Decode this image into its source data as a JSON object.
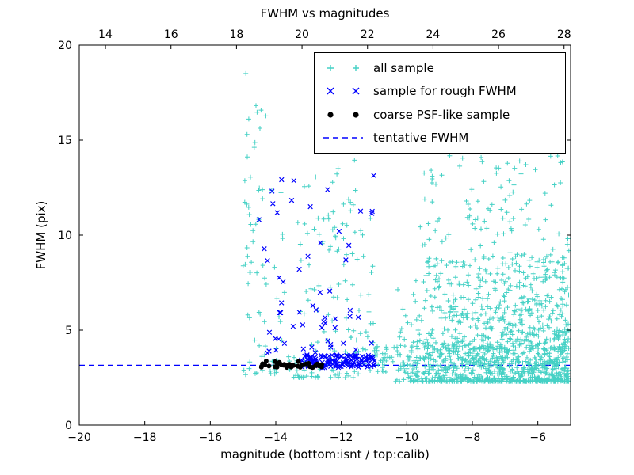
{
  "chart_data": {
    "type": "scatter",
    "title": "FWHM vs magnitudes",
    "xlabel": "magnitude (bottom:isnt / top:calib)",
    "ylabel": "FWHM (pix)",
    "xlim": [
      -20,
      -5
    ],
    "ylim": [
      0,
      20
    ],
    "x_ticks": [
      -20,
      -18,
      -16,
      -14,
      -12,
      -10,
      -8,
      -6
    ],
    "y_ticks": [
      0,
      5,
      10,
      15,
      20
    ],
    "top_ticks": [
      14,
      16,
      18,
      20,
      22,
      24,
      26,
      28
    ],
    "top_axis_offset": 33.2,
    "tentative_fwhm": 3.15,
    "tentative_color": "#0000ff",
    "legend": [
      {
        "label": "all sample"
      },
      {
        "label": "sample for rough FWHM"
      },
      {
        "label": "coarse PSF-like sample"
      },
      {
        "label": "tentative FWHM"
      }
    ],
    "series": [
      {
        "name": "all sample",
        "marker": "+",
        "color": "#45d1c5",
        "clusters": [
          {
            "n": 55,
            "x": [
              -15.0,
              -14.3
            ],
            "y": [
              2.6,
              18.6
            ],
            "ypow": 1.35
          },
          {
            "n": 25,
            "x": [
              -14.3,
              -13.5
            ],
            "y": [
              2.7,
              12.5
            ],
            "ypow": 2.4
          },
          {
            "n": 135,
            "x": [
              -13.5,
              -11.0
            ],
            "y": [
              2.5,
              14.2
            ],
            "ypow": 2.6
          },
          {
            "n": 300,
            "x": [
              -11.0,
              -5.05
            ],
            "y": [
              2.7,
              4.2
            ],
            "ypow": 1.2
          },
          {
            "n": 850,
            "x": [
              -10.4,
              -5.05
            ],
            "xpow": 0.65,
            "y": [
              2.3,
              9.0
            ],
            "ypow": 3.0
          },
          {
            "n": 320,
            "x": [
              -9.7,
              -5.05
            ],
            "xpow": 0.8,
            "y": [
              4.0,
              15.3
            ],
            "ypow": 2.2
          },
          {
            "n": 10,
            "x": [
              -12.6,
              -11.2
            ],
            "y": [
              9.0,
              12.8
            ],
            "ypow": 1.0
          }
        ]
      },
      {
        "name": "sample for rough FWHM",
        "marker": "x",
        "color": "#0000ff",
        "clusters": [
          {
            "n": 120,
            "x": [
              -13.25,
              -10.95
            ],
            "y": [
              3.0,
              3.7
            ],
            "ypow": 1.1
          },
          {
            "n": 58,
            "x": [
              -14.55,
              -11.0
            ],
            "y": [
              3.7,
              13.2
            ],
            "ypow": 2.0
          }
        ]
      },
      {
        "name": "coarse PSF-like sample",
        "marker": "dot",
        "color": "#000000",
        "clusters": [
          {
            "n": 40,
            "x": [
              -14.5,
              -12.55
            ],
            "y": [
              3.02,
              3.38
            ]
          }
        ]
      }
    ]
  }
}
